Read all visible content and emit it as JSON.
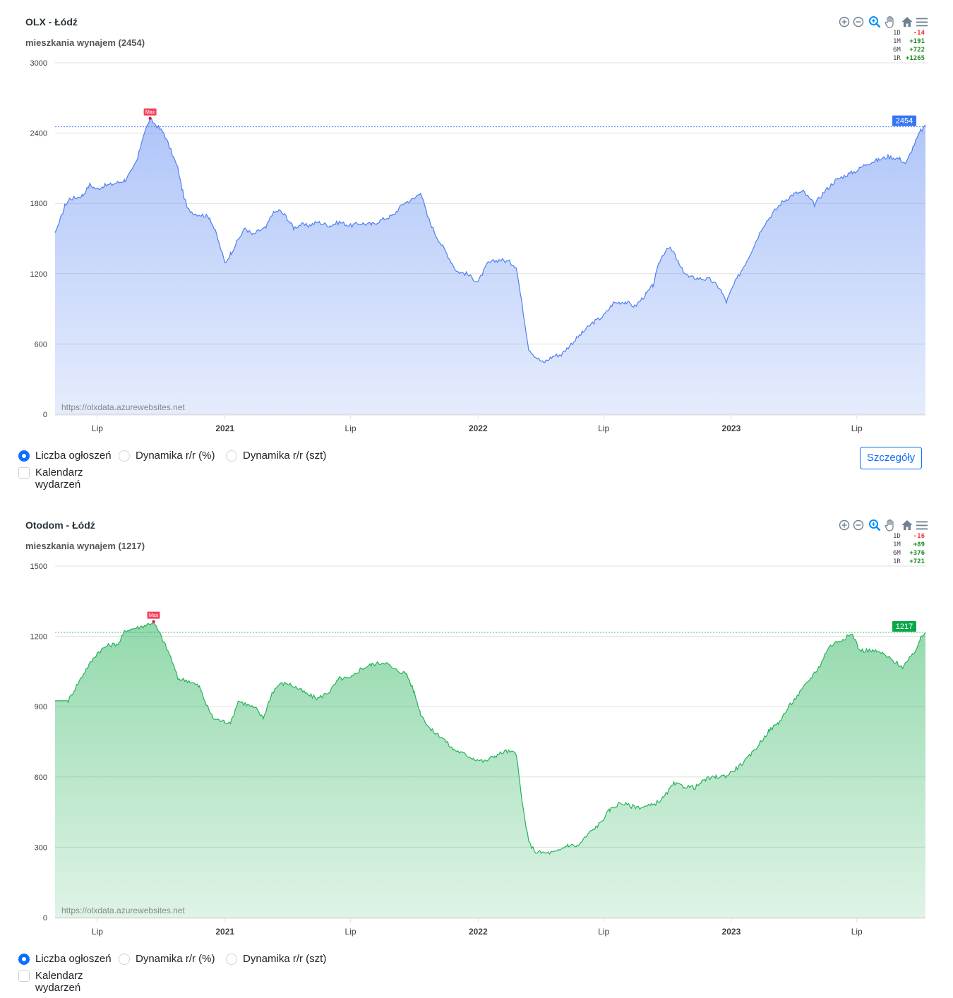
{
  "charts": [
    {
      "title": "OLX - Łódź",
      "subtitle": "mieszkania wynajem (2454)",
      "stats": [
        {
          "label": "1D",
          "value": "-14",
          "color": "#e53935"
        },
        {
          "label": "1M",
          "value": "+191",
          "color": "#1b8a1b"
        },
        {
          "label": "6M",
          "value": "+722",
          "color": "#1b8a1b"
        },
        {
          "label": "1R",
          "value": "+1265",
          "color": "#1b8a1b"
        }
      ],
      "options": {
        "opt1": "Liczba ogłoszeń",
        "opt2": "Dynamika r/r (%)",
        "opt3": "Dynamika r/r (szt)",
        "calendar": "Kalendarz wydarzeń",
        "details_button": "Szczegóły"
      },
      "watermark": "https://olxdata.azurewebsites.net"
    },
    {
      "title": "Otodom - Łódź",
      "subtitle": "mieszkania wynajem (1217)",
      "stats": [
        {
          "label": "1D",
          "value": "-16",
          "color": "#e53935"
        },
        {
          "label": "1M",
          "value": "+89",
          "color": "#1b8a1b"
        },
        {
          "label": "6M",
          "value": "+376",
          "color": "#1b8a1b"
        },
        {
          "label": "1R",
          "value": "+721",
          "color": "#1b8a1b"
        }
      ],
      "options": {
        "opt1": "Liczba ogłoszeń",
        "opt2": "Dynamika r/r (%)",
        "opt3": "Dynamika r/r (szt)",
        "calendar": "Kalendarz wydarzeń"
      },
      "watermark": "https://olxdata.azurewebsites.net"
    }
  ],
  "chart_data": [
    {
      "type": "area",
      "color": "#4f7ff0",
      "ylim": [
        0,
        3000
      ],
      "yticks": [
        0,
        600,
        1200,
        1800,
        2400,
        3000
      ],
      "xlim": [
        "2020-05-01",
        "2023-10-08"
      ],
      "xticks": [
        {
          "date": "2020-07-01",
          "label": "Lip",
          "bold": false
        },
        {
          "date": "2021-01-01",
          "label": "2021",
          "bold": true
        },
        {
          "date": "2021-07-01",
          "label": "Lip",
          "bold": false
        },
        {
          "date": "2022-01-01",
          "label": "2022",
          "bold": true
        },
        {
          "date": "2022-07-01",
          "label": "Lip",
          "bold": false
        },
        {
          "date": "2023-01-01",
          "label": "2023",
          "bold": true
        },
        {
          "date": "2023-07-01",
          "label": "Lip",
          "bold": false
        }
      ],
      "current_value": 2454,
      "current_label": "2454",
      "max_label": "Max",
      "max_point": {
        "date": "2020-09-15",
        "value": 2520
      },
      "points": [
        [
          "2020-05-01",
          1550
        ],
        [
          "2020-05-08",
          1650
        ],
        [
          "2020-05-15",
          1780
        ],
        [
          "2020-05-22",
          1840
        ],
        [
          "2020-06-01",
          1850
        ],
        [
          "2020-06-10",
          1870
        ],
        [
          "2020-06-20",
          1960
        ],
        [
          "2020-06-30",
          1920
        ],
        [
          "2020-07-10",
          1950
        ],
        [
          "2020-07-20",
          1960
        ],
        [
          "2020-08-01",
          1980
        ],
        [
          "2020-08-10",
          2000
        ],
        [
          "2020-08-20",
          2080
        ],
        [
          "2020-08-28",
          2180
        ],
        [
          "2020-09-05",
          2380
        ],
        [
          "2020-09-15",
          2520
        ],
        [
          "2020-09-25",
          2460
        ],
        [
          "2020-10-05",
          2400
        ],
        [
          "2020-10-15",
          2250
        ],
        [
          "2020-10-25",
          2100
        ],
        [
          "2020-11-01",
          1900
        ],
        [
          "2020-11-08",
          1750
        ],
        [
          "2020-11-20",
          1710
        ],
        [
          "2020-12-01",
          1700
        ],
        [
          "2020-12-10",
          1680
        ],
        [
          "2020-12-20",
          1530
        ],
        [
          "2021-01-01",
          1290
        ],
        [
          "2021-01-10",
          1380
        ],
        [
          "2021-01-20",
          1490
        ],
        [
          "2021-01-30",
          1590
        ],
        [
          "2021-02-10",
          1530
        ],
        [
          "2021-02-20",
          1570
        ],
        [
          "2021-03-01",
          1590
        ],
        [
          "2021-03-10",
          1710
        ],
        [
          "2021-03-20",
          1740
        ],
        [
          "2021-03-30",
          1690
        ],
        [
          "2021-04-10",
          1590
        ],
        [
          "2021-04-20",
          1620
        ],
        [
          "2021-05-01",
          1610
        ],
        [
          "2021-05-15",
          1640
        ],
        [
          "2021-06-01",
          1610
        ],
        [
          "2021-06-15",
          1640
        ],
        [
          "2021-07-01",
          1610
        ],
        [
          "2021-07-15",
          1630
        ],
        [
          "2021-08-01",
          1620
        ],
        [
          "2021-08-15",
          1660
        ],
        [
          "2021-09-01",
          1700
        ],
        [
          "2021-09-15",
          1800
        ],
        [
          "2021-10-01",
          1840
        ],
        [
          "2021-10-10",
          1900
        ],
        [
          "2021-10-20",
          1690
        ],
        [
          "2021-11-01",
          1530
        ],
        [
          "2021-11-15",
          1390
        ],
        [
          "2021-12-01",
          1220
        ],
        [
          "2021-12-15",
          1200
        ],
        [
          "2022-01-01",
          1130
        ],
        [
          "2022-01-15",
          1290
        ],
        [
          "2022-02-01",
          1320
        ],
        [
          "2022-02-15",
          1300
        ],
        [
          "2022-02-25",
          1260
        ],
        [
          "2022-03-05",
          950
        ],
        [
          "2022-03-15",
          560
        ],
        [
          "2022-03-25",
          490
        ],
        [
          "2022-04-05",
          440
        ],
        [
          "2022-04-20",
          500
        ],
        [
          "2022-05-01",
          510
        ],
        [
          "2022-05-15",
          600
        ],
        [
          "2022-06-01",
          700
        ],
        [
          "2022-06-15",
          780
        ],
        [
          "2022-07-01",
          840
        ],
        [
          "2022-07-15",
          950
        ],
        [
          "2022-08-01",
          960
        ],
        [
          "2022-08-15",
          920
        ],
        [
          "2022-09-01",
          1030
        ],
        [
          "2022-09-10",
          1100
        ],
        [
          "2022-09-20",
          1310
        ],
        [
          "2022-10-01",
          1430
        ],
        [
          "2022-10-10",
          1380
        ],
        [
          "2022-10-20",
          1250
        ],
        [
          "2022-11-01",
          1170
        ],
        [
          "2022-11-15",
          1160
        ],
        [
          "2022-12-01",
          1150
        ],
        [
          "2022-12-15",
          1080
        ],
        [
          "2022-12-25",
          960
        ],
        [
          "2023-01-05",
          1110
        ],
        [
          "2023-01-15",
          1220
        ],
        [
          "2023-01-25",
          1330
        ],
        [
          "2023-02-05",
          1470
        ],
        [
          "2023-02-15",
          1600
        ],
        [
          "2023-03-01",
          1710
        ],
        [
          "2023-03-15",
          1810
        ],
        [
          "2023-04-01",
          1880
        ],
        [
          "2023-04-15",
          1900
        ],
        [
          "2023-05-01",
          1790
        ],
        [
          "2023-05-15",
          1900
        ],
        [
          "2023-06-01",
          2000
        ],
        [
          "2023-06-15",
          2040
        ],
        [
          "2023-07-01",
          2080
        ],
        [
          "2023-07-15",
          2140
        ],
        [
          "2023-08-01",
          2170
        ],
        [
          "2023-08-15",
          2200
        ],
        [
          "2023-09-01",
          2180
        ],
        [
          "2023-09-10",
          2140
        ],
        [
          "2023-09-20",
          2280
        ],
        [
          "2023-10-01",
          2420
        ],
        [
          "2023-10-08",
          2454
        ]
      ]
    },
    {
      "type": "area",
      "color": "#27b35a",
      "ylim": [
        0,
        1500
      ],
      "yticks": [
        0,
        300,
        600,
        900,
        1200,
        1500
      ],
      "xlim": [
        "2020-05-01",
        "2023-10-08"
      ],
      "xticks": [
        {
          "date": "2020-07-01",
          "label": "Lip",
          "bold": false
        },
        {
          "date": "2021-01-01",
          "label": "2021",
          "bold": true
        },
        {
          "date": "2021-07-01",
          "label": "Lip",
          "bold": false
        },
        {
          "date": "2022-01-01",
          "label": "2022",
          "bold": true
        },
        {
          "date": "2022-07-01",
          "label": "Lip",
          "bold": false
        },
        {
          "date": "2023-01-01",
          "label": "2023",
          "bold": true
        },
        {
          "date": "2023-07-01",
          "label": "Lip",
          "bold": false
        }
      ],
      "current_value": 1217,
      "current_label": "1217",
      "max_label": "Max",
      "max_point": {
        "date": "2020-09-20",
        "value": 1260
      },
      "points": [
        [
          "2020-05-01",
          925
        ],
        [
          "2020-05-20",
          925
        ],
        [
          "2020-06-01",
          990
        ],
        [
          "2020-06-15",
          1060
        ],
        [
          "2020-07-01",
          1130
        ],
        [
          "2020-07-15",
          1160
        ],
        [
          "2020-08-01",
          1170
        ],
        [
          "2020-08-10",
          1225
        ],
        [
          "2020-09-01",
          1240
        ],
        [
          "2020-09-20",
          1260
        ],
        [
          "2020-10-01",
          1200
        ],
        [
          "2020-10-15",
          1110
        ],
        [
          "2020-10-25",
          1020
        ],
        [
          "2020-11-10",
          1010
        ],
        [
          "2020-11-25",
          985
        ],
        [
          "2020-12-05",
          910
        ],
        [
          "2020-12-15",
          850
        ],
        [
          "2021-01-01",
          835
        ],
        [
          "2021-01-10",
          835
        ],
        [
          "2021-01-20",
          925
        ],
        [
          "2021-02-01",
          910
        ],
        [
          "2021-02-15",
          890
        ],
        [
          "2021-02-25",
          850
        ],
        [
          "2021-03-10",
          960
        ],
        [
          "2021-03-20",
          995
        ],
        [
          "2021-04-01",
          1000
        ],
        [
          "2021-04-15",
          980
        ],
        [
          "2021-05-01",
          950
        ],
        [
          "2021-05-15",
          935
        ],
        [
          "2021-06-01",
          965
        ],
        [
          "2021-06-15",
          1020
        ],
        [
          "2021-07-01",
          1020
        ],
        [
          "2021-07-15",
          1060
        ],
        [
          "2021-08-01",
          1080
        ],
        [
          "2021-08-20",
          1090
        ],
        [
          "2021-09-01",
          1060
        ],
        [
          "2021-09-20",
          1040
        ],
        [
          "2021-10-01",
          960
        ],
        [
          "2021-10-10",
          870
        ],
        [
          "2021-10-25",
          800
        ],
        [
          "2021-11-10",
          770
        ],
        [
          "2021-11-25",
          720
        ],
        [
          "2021-12-10",
          700
        ],
        [
          "2021-12-25",
          680
        ],
        [
          "2022-01-10",
          665
        ],
        [
          "2022-01-25",
          690
        ],
        [
          "2022-02-10",
          710
        ],
        [
          "2022-02-25",
          700
        ],
        [
          "2022-03-05",
          500
        ],
        [
          "2022-03-15",
          320
        ],
        [
          "2022-03-25",
          280
        ],
        [
          "2022-04-10",
          275
        ],
        [
          "2022-04-25",
          280
        ],
        [
          "2022-05-10",
          310
        ],
        [
          "2022-05-25",
          305
        ],
        [
          "2022-06-10",
          360
        ],
        [
          "2022-06-25",
          400
        ],
        [
          "2022-07-10",
          460
        ],
        [
          "2022-07-25",
          490
        ],
        [
          "2022-08-10",
          475
        ],
        [
          "2022-08-25",
          470
        ],
        [
          "2022-09-10",
          480
        ],
        [
          "2022-09-25",
          510
        ],
        [
          "2022-10-10",
          570
        ],
        [
          "2022-10-25",
          560
        ],
        [
          "2022-11-10",
          555
        ],
        [
          "2022-11-25",
          590
        ],
        [
          "2022-12-10",
          600
        ],
        [
          "2022-12-25",
          605
        ],
        [
          "2023-01-10",
          640
        ],
        [
          "2023-01-25",
          680
        ],
        [
          "2023-02-10",
          740
        ],
        [
          "2023-02-25",
          800
        ],
        [
          "2023-03-10",
          830
        ],
        [
          "2023-03-25",
          900
        ],
        [
          "2023-04-10",
          960
        ],
        [
          "2023-04-25",
          1020
        ],
        [
          "2023-05-10",
          1080
        ],
        [
          "2023-05-20",
          1150
        ],
        [
          "2023-06-01",
          1175
        ],
        [
          "2023-06-15",
          1195
        ],
        [
          "2023-06-25",
          1210
        ],
        [
          "2023-07-05",
          1140
        ],
        [
          "2023-07-20",
          1140
        ],
        [
          "2023-08-05",
          1130
        ],
        [
          "2023-08-20",
          1100
        ],
        [
          "2023-09-05",
          1070
        ],
        [
          "2023-09-20",
          1120
        ],
        [
          "2023-10-01",
          1190
        ],
        [
          "2023-10-08",
          1217
        ]
      ]
    }
  ]
}
